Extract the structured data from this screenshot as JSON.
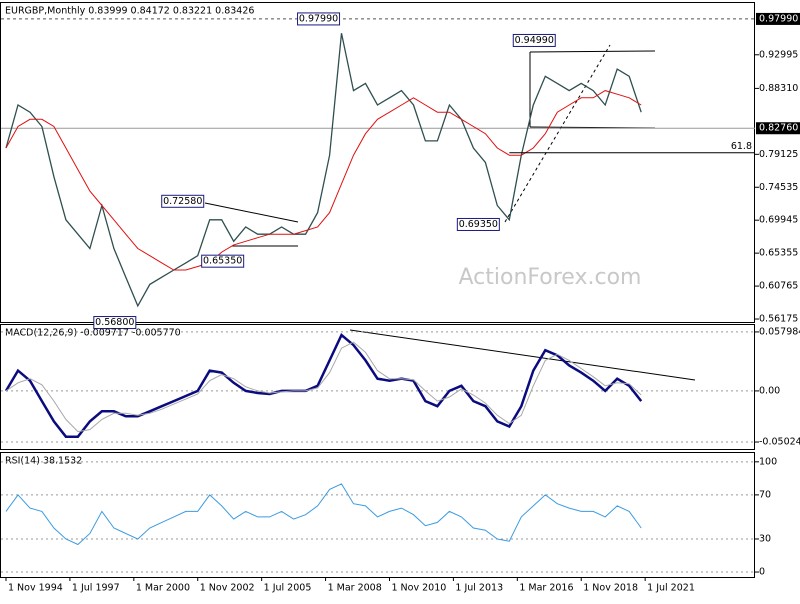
{
  "chart_data": [
    {
      "type": "line",
      "title": "EURGBP,Monthly 0.83999 0.84172 0.83221 0.83426",
      "watermark": "ActionForex.com",
      "x": [
        0,
        6,
        12,
        18,
        24,
        30,
        36,
        42,
        48,
        54,
        60,
        66,
        72,
        78,
        84,
        90,
        96,
        102,
        108,
        114,
        120,
        126,
        132,
        138,
        144,
        150,
        156,
        162,
        168,
        174,
        180,
        186,
        192,
        198,
        204,
        210,
        216,
        222,
        228,
        234,
        240,
        246,
        252,
        258,
        264,
        270,
        276,
        282,
        288,
        294,
        300,
        306,
        312,
        318
      ],
      "xlim": [
        -2.5,
        375
      ],
      "ylim": [
        0.5576,
        1.0021
      ],
      "yticks": [
        {
          "value": 0.92995,
          "label": "0.92995"
        },
        {
          "value": 0.8831,
          "label": "0.88310"
        },
        {
          "value": 0.79125,
          "label": "0.79125"
        },
        {
          "value": 0.74535,
          "label": "0.74535"
        },
        {
          "value": 0.69945,
          "label": "0.69945"
        },
        {
          "value": 0.65355,
          "label": "0.65355"
        },
        {
          "value": 0.60765,
          "label": "0.60765"
        },
        {
          "value": 0.56175,
          "label": "0.56175"
        }
      ],
      "price_labels": [
        {
          "value": 0.9799,
          "label": "0.97990"
        },
        {
          "value": 0.8276,
          "label": "0.82760"
        }
      ],
      "series": [
        {
          "name": "EURGBP",
          "color": "#2f4f4f",
          "values": [
            0.8,
            0.86,
            0.85,
            0.83,
            0.76,
            0.7,
            0.68,
            0.66,
            0.72,
            0.66,
            0.62,
            0.58,
            0.61,
            0.62,
            0.63,
            0.64,
            0.65,
            0.7,
            0.7,
            0.67,
            0.69,
            0.68,
            0.68,
            0.69,
            0.68,
            0.68,
            0.71,
            0.79,
            0.96,
            0.88,
            0.89,
            0.86,
            0.87,
            0.88,
            0.86,
            0.81,
            0.81,
            0.86,
            0.84,
            0.8,
            0.78,
            0.72,
            0.7,
            0.79,
            0.86,
            0.9,
            0.89,
            0.88,
            0.89,
            0.88,
            0.86,
            0.91,
            0.9,
            0.85
          ]
        },
        {
          "name": "MA",
          "color": "#e01010",
          "values": [
            0.8,
            0.83,
            0.84,
            0.84,
            0.83,
            0.8,
            0.77,
            0.74,
            0.72,
            0.7,
            0.68,
            0.66,
            0.65,
            0.64,
            0.63,
            0.63,
            0.635,
            0.64,
            0.655,
            0.665,
            0.67,
            0.675,
            0.68,
            0.68,
            0.68,
            0.685,
            0.69,
            0.71,
            0.75,
            0.79,
            0.82,
            0.84,
            0.85,
            0.86,
            0.87,
            0.86,
            0.85,
            0.85,
            0.84,
            0.83,
            0.82,
            0.8,
            0.79,
            0.79,
            0.8,
            0.82,
            0.85,
            0.86,
            0.87,
            0.87,
            0.88,
            0.875,
            0.87,
            0.86
          ]
        }
      ],
      "annotations": [
        {
          "text": "0.97990",
          "x": 168,
          "y": 0.9799
        },
        {
          "text": "0.94990",
          "x": 276,
          "y": 0.9499
        },
        {
          "text": "0.72580",
          "x": 100,
          "y": 0.7258
        },
        {
          "text": "0.65350",
          "x": 120,
          "y": 0.6535
        },
        {
          "text": "0.56800",
          "x": 66,
          "y": 0.568
        },
        {
          "text": "0.69350",
          "x": 248,
          "y": 0.6935
        },
        {
          "text": "61.8",
          "x": 252,
          "y": 0.7935
        }
      ]
    },
    {
      "type": "line",
      "title": "MACD(12,26,9) -0.009717 -0.005770",
      "x": [
        0,
        6,
        12,
        18,
        24,
        30,
        36,
        42,
        48,
        54,
        60,
        66,
        72,
        78,
        84,
        90,
        96,
        102,
        108,
        114,
        120,
        126,
        132,
        138,
        144,
        150,
        156,
        162,
        168,
        174,
        180,
        186,
        192,
        198,
        204,
        210,
        216,
        222,
        228,
        234,
        240,
        246,
        252,
        258,
        264,
        270,
        276,
        282,
        288,
        294,
        300,
        306,
        312,
        318
      ],
      "xlim": [
        -2.5,
        375
      ],
      "ylim": [
        -0.0571,
        0.0648
      ],
      "yticks": [
        {
          "value": 0.057984,
          "label": "0.057984"
        },
        {
          "value": 0,
          "label": "0.00"
        },
        {
          "value": -0.050241,
          "label": "-0.050241"
        }
      ],
      "series": [
        {
          "name": "MACD",
          "color": "#0b0b80",
          "values": [
            0.0,
            0.02,
            0.01,
            -0.01,
            -0.03,
            -0.045,
            -0.045,
            -0.03,
            -0.02,
            -0.02,
            -0.025,
            -0.025,
            -0.02,
            -0.015,
            -0.01,
            -0.005,
            0.0,
            0.02,
            0.018,
            0.008,
            0.0,
            -0.002,
            -0.003,
            0.0,
            0.0,
            0.0,
            0.005,
            0.03,
            0.055,
            0.045,
            0.03,
            0.012,
            0.01,
            0.012,
            0.01,
            -0.01,
            -0.015,
            0.0,
            0.005,
            -0.01,
            -0.015,
            -0.03,
            -0.035,
            -0.015,
            0.02,
            0.04,
            0.035,
            0.025,
            0.018,
            0.01,
            0.0,
            0.012,
            0.005,
            -0.01
          ]
        },
        {
          "name": "Signal",
          "color": "#a8a8a8",
          "values": [
            0.0,
            0.008,
            0.012,
            0.006,
            -0.01,
            -0.028,
            -0.04,
            -0.038,
            -0.028,
            -0.022,
            -0.022,
            -0.024,
            -0.022,
            -0.018,
            -0.013,
            -0.008,
            -0.003,
            0.01,
            0.016,
            0.012,
            0.004,
            0.0,
            -0.002,
            -0.001,
            0.0,
            0.0,
            0.003,
            0.018,
            0.042,
            0.048,
            0.038,
            0.02,
            0.012,
            0.012,
            0.011,
            0.0,
            -0.01,
            -0.006,
            0.002,
            -0.004,
            -0.012,
            -0.024,
            -0.032,
            -0.024,
            0.005,
            0.03,
            0.036,
            0.03,
            0.022,
            0.014,
            0.005,
            0.008,
            0.007,
            -0.004
          ]
        }
      ]
    },
    {
      "type": "line",
      "title": "RSI(14) 38.1532",
      "x": [
        0,
        6,
        12,
        18,
        24,
        30,
        36,
        42,
        48,
        54,
        60,
        66,
        72,
        78,
        84,
        90,
        96,
        102,
        108,
        114,
        120,
        126,
        132,
        138,
        144,
        150,
        156,
        162,
        168,
        174,
        180,
        186,
        192,
        198,
        204,
        210,
        216,
        222,
        228,
        234,
        240,
        246,
        252,
        258,
        264,
        270,
        276,
        282,
        288,
        294,
        300,
        306,
        312,
        318
      ],
      "xlim": [
        -2.5,
        375
      ],
      "ylim": [
        -4.5,
        108
      ],
      "yticks": [
        100,
        70,
        30,
        0
      ],
      "xticks": [
        {
          "value": 0,
          "label": "1 Nov 1994"
        },
        {
          "value": 32,
          "label": "1 Jul 1997"
        },
        {
          "value": 64,
          "label": "1 Mar 2000"
        },
        {
          "value": 96,
          "label": "1 Nov 2002"
        },
        {
          "value": 128,
          "label": "1 Jul 2005"
        },
        {
          "value": 160,
          "label": "1 Mar 2008"
        },
        {
          "value": 192,
          "label": "1 Nov 2010"
        },
        {
          "value": 224,
          "label": "1 Jul 2013"
        },
        {
          "value": 256,
          "label": "1 Mar 2016"
        },
        {
          "value": 288,
          "label": "1 Nov 2018"
        },
        {
          "value": 320,
          "label": "1 Jul 2021"
        }
      ],
      "series": [
        {
          "name": "RSI",
          "color": "#3d9be0",
          "values": [
            55,
            70,
            58,
            55,
            40,
            30,
            25,
            35,
            55,
            40,
            35,
            30,
            40,
            45,
            50,
            55,
            55,
            70,
            60,
            48,
            55,
            50,
            50,
            55,
            48,
            52,
            60,
            75,
            80,
            62,
            60,
            50,
            55,
            58,
            52,
            42,
            45,
            55,
            50,
            40,
            38,
            30,
            28,
            50,
            60,
            70,
            62,
            58,
            55,
            55,
            50,
            60,
            55,
            40
          ]
        }
      ]
    }
  ]
}
